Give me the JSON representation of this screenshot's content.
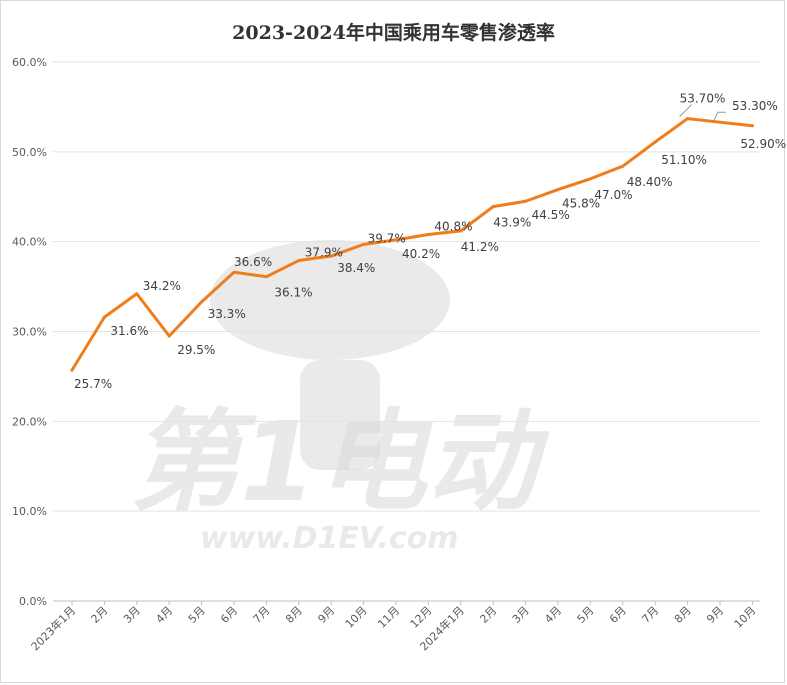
{
  "chart_data": {
    "type": "line",
    "title": "2023-2024年中国乘用车零售渗透率",
    "xlabel": "",
    "ylabel": "",
    "ylim": [
      0,
      60
    ],
    "yticks": [
      "0.0%",
      "10.0%",
      "20.0%",
      "30.0%",
      "40.0%",
      "50.0%",
      "60.0%"
    ],
    "categories": [
      "2023年1月",
      "2月",
      "3月",
      "4月",
      "5月",
      "6月",
      "7月",
      "8月",
      "9月",
      "10月",
      "11月",
      "12月",
      "2024年1月",
      "2月",
      "3月",
      "4月",
      "5月",
      "6月",
      "7月",
      "8月",
      "9月",
      "10月"
    ],
    "values": [
      25.7,
      31.6,
      34.2,
      29.5,
      33.3,
      36.6,
      36.1,
      37.9,
      38.4,
      39.7,
      40.2,
      40.8,
      41.2,
      43.9,
      44.5,
      45.8,
      47.0,
      48.4,
      51.1,
      53.7,
      53.3,
      52.9
    ],
    "data_labels": [
      "25.7%",
      "31.6%",
      "34.2%",
      "29.5%",
      "33.3%",
      "36.6%",
      "36.1%",
      "37.9%",
      "38.4%",
      "39.7%",
      "40.2%",
      "40.8%",
      "41.2%",
      "43.9%",
      "44.5%",
      "45.8%",
      "47.0%",
      "48.40%",
      "51.10%",
      "53.70%",
      "53.30%",
      "52.90%"
    ],
    "grid": true,
    "legend": "none",
    "line_color": "#f07d1a"
  },
  "watermark": {
    "brand": "第1电动",
    "url": "www.D1EV.com"
  }
}
